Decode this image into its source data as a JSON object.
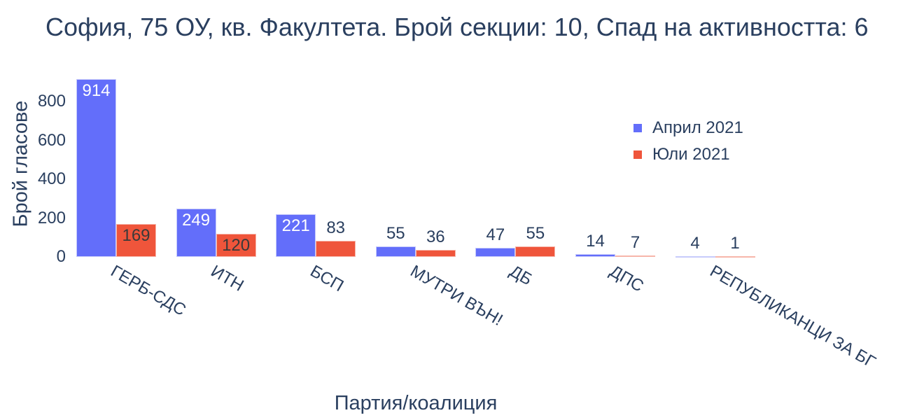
{
  "chart_data": {
    "type": "bar",
    "title": "София, 75 ОУ, кв. Факултета. Брой секции: 10,  Спад на активността: 6",
    "xlabel": "Партия/коалиция",
    "ylabel": "Брой гласове",
    "categories": [
      "ГЕРБ-СДС",
      "ИТН",
      "БСП",
      "МУТРИ ВЪН!",
      "ДБ",
      "ДПС",
      "РЕПУБЛИКАНЦИ ЗА БГ"
    ],
    "series": [
      {
        "name": "Април 2021",
        "color": "#636efa",
        "values": [
          914,
          249,
          221,
          55,
          47,
          14,
          4
        ]
      },
      {
        "name": "Юли 2021",
        "color": "#ef553b",
        "values": [
          169,
          120,
          83,
          36,
          55,
          7,
          1
        ]
      }
    ],
    "yticks": [
      0,
      200,
      400,
      600,
      800
    ],
    "ylim": [
      0,
      962
    ],
    "grid": false,
    "legend_position": "top-right inside plot",
    "barmode": "group"
  }
}
